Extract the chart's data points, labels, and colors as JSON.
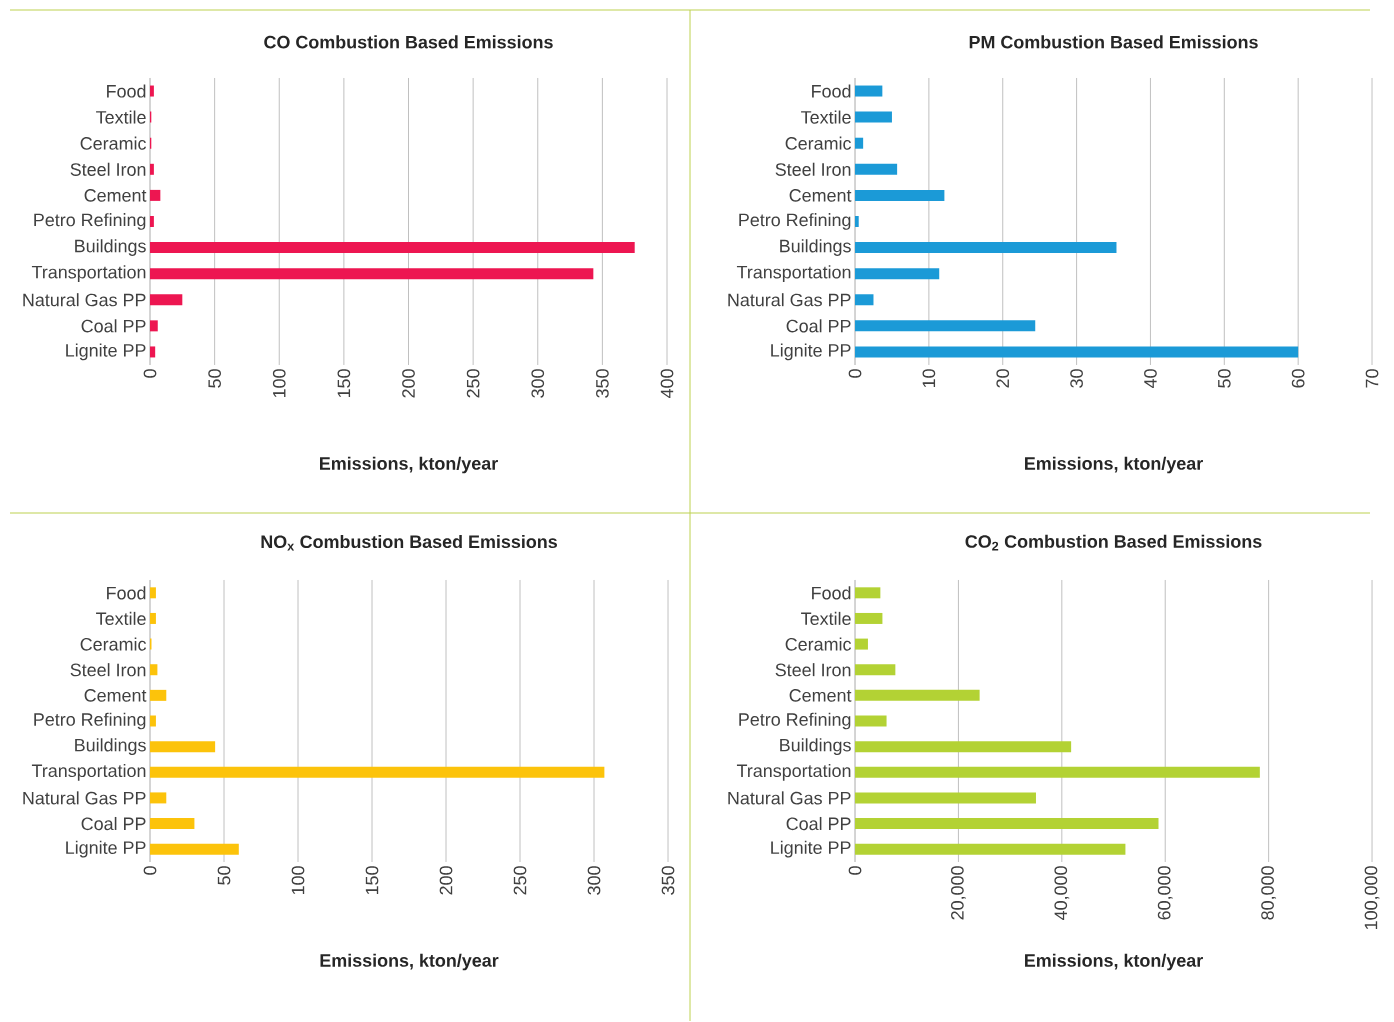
{
  "chart_data": [
    {
      "type": "bar",
      "orientation": "horizontal",
      "title": "CO Combustion Based Emissions",
      "xlabel": "Emissions, kton/year",
      "categories": [
        "Food",
        "Textile",
        "Ceramic",
        "Steel Iron",
        "Cement",
        "Petro Refining",
        "Buildings",
        "Transportation",
        "Natural Gas PP",
        "Coal PP",
        "Lignite PP"
      ],
      "values": [
        3,
        1,
        1,
        3,
        8,
        3,
        375,
        343,
        25,
        6,
        4
      ],
      "color": "#ed1651",
      "xlim": [
        0,
        400
      ],
      "xticks": [
        0,
        50,
        100,
        150,
        200,
        250,
        300,
        350,
        400
      ],
      "grid": "x"
    },
    {
      "type": "bar",
      "orientation": "horizontal",
      "title": "PM Combustion Based Emissions",
      "xlabel": "Emissions, kton/year",
      "categories": [
        "Food",
        "Textile",
        "Ceramic",
        "Steel Iron",
        "Cement",
        "Petro Refining",
        "Buildings",
        "Transportation",
        "Natural Gas PP",
        "Coal PP",
        "Lignite PP"
      ],
      "values": [
        3.7,
        5.0,
        1.1,
        5.7,
        12.1,
        0.5,
        35.4,
        11.4,
        2.5,
        24.4,
        60.0
      ],
      "color": "#1b9ad7",
      "xlim": [
        0,
        70
      ],
      "xticks": [
        0,
        10,
        20,
        30,
        40,
        50,
        60,
        70
      ],
      "grid": "x"
    },
    {
      "type": "bar",
      "orientation": "horizontal",
      "title": "NO$_{x}$ Combustion Based Emissions",
      "xlabel": "Emissions, kton/year",
      "categories": [
        "Food",
        "Textile",
        "Ceramic",
        "Steel Iron",
        "Cement",
        "Petro Refining",
        "Buildings",
        "Transportation",
        "Natural Gas PP",
        "Coal PP",
        "Lignite PP"
      ],
      "values": [
        4,
        4,
        1,
        5,
        11,
        4,
        44,
        307,
        11,
        30,
        60
      ],
      "color": "#fcc30b",
      "xlim": [
        0,
        350
      ],
      "xticks": [
        0,
        50,
        100,
        150,
        200,
        250,
        300,
        350
      ],
      "grid": "x"
    },
    {
      "type": "bar",
      "orientation": "horizontal",
      "title": "CO$_{2}$ Combustion Based Emissions",
      "xlabel": "Emissions, kton/year",
      "categories": [
        "Food",
        "Textile",
        "Ceramic",
        "Steel Iron",
        "Cement",
        "Petro Refining",
        "Buildings",
        "Transportation",
        "Natural Gas PP",
        "Coal PP",
        "Lignite PP"
      ],
      "values": [
        4900,
        5300,
        2500,
        7800,
        24100,
        6100,
        41800,
        78300,
        35000,
        58700,
        52300
      ],
      "color": "#b3d234",
      "xlim": [
        0,
        100000
      ],
      "xticks": [
        0,
        {
          "value": 20000,
          "label": "20,000"
        },
        {
          "value": 40000,
          "label": "40,000"
        },
        {
          "value": 60000,
          "label": "60,000"
        },
        {
          "value": 80000,
          "label": "80,000"
        },
        {
          "value": 100000,
          "label": "100,000"
        }
      ],
      "grid": "x"
    }
  ]
}
